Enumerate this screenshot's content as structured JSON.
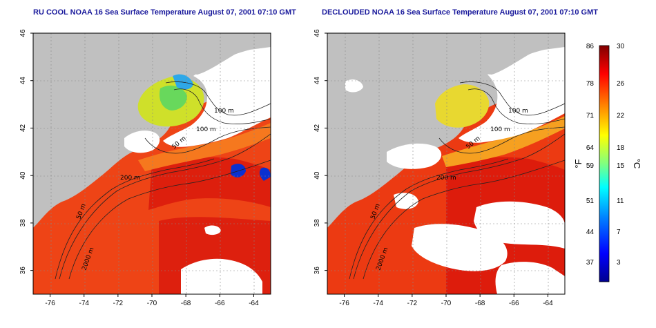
{
  "titles": {
    "left": "RU COOL NOAA 16 Sea Surface Temperature August 07, 2001 07:10 GMT",
    "right": "DECLOUDED NOAA 16 Sea Surface Temperature August 07, 2001 07:10 GMT"
  },
  "axes": {
    "lon_ticks": [
      -76,
      -74,
      -72,
      -70,
      -68,
      -66,
      -64
    ],
    "lat_ticks": [
      36,
      38,
      40,
      42,
      44,
      46
    ],
    "lon_range": [
      -77,
      -63
    ],
    "lat_range": [
      35,
      46
    ]
  },
  "contour_labels": [
    "100 m",
    "100 m",
    "50 m",
    "50 m",
    "200 m",
    "50 m",
    "2000 m"
  ],
  "colorbar": {
    "fahrenheit_ticks": [
      "86",
      "78",
      "71",
      "64",
      "59",
      "51",
      "44",
      "37"
    ],
    "celsius_ticks": [
      "30",
      "26",
      "22",
      "18",
      "15",
      "11",
      "7",
      "3"
    ],
    "fahrenheit_unit": "°F",
    "celsius_unit": "°C",
    "colors": [
      "#00008f",
      "#0000ff",
      "#0080ff",
      "#00ffff",
      "#80ff80",
      "#ffff00",
      "#ff8000",
      "#ff0000",
      "#800000"
    ]
  },
  "colors": {
    "land": "#c0c0c0",
    "cloud": "#ffffff",
    "warm_sea": "#ec3a12",
    "gulf_stream": "#dc1e0e",
    "title": "#1a1a9c"
  }
}
